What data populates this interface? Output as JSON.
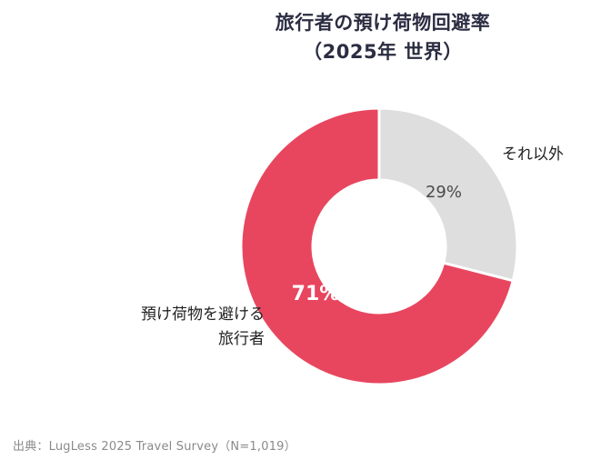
{
  "title": {
    "line1": "旅行者の預け荷物回避率",
    "line2": "（2025年 世界）"
  },
  "source": "出典：LugLess 2025 Travel Survey（N=1,019）",
  "colors": {
    "accent": "#e8465f",
    "muted_slice": "#dedede",
    "title_text": "#2b2d42",
    "label_text": "#222222",
    "inside_gray_label": "#4a4a4a",
    "inside_pink_label": "#ffffff",
    "source_text": "#8a8a8a",
    "background": "#ffffff"
  },
  "chart_data": {
    "type": "pie",
    "donut": true,
    "title": "旅行者の預け荷物回避率（2025年 世界）",
    "start_angle_deg": 0,
    "direction": "clockwise",
    "legend": "none",
    "slices": [
      {
        "label": "それ以外",
        "value": 29,
        "display": "29%",
        "color": "#dedede",
        "label_lines": [
          "それ以外"
        ]
      },
      {
        "label": "預け荷物を避ける旅行者",
        "value": 71,
        "display": "71%",
        "color": "#e8465f",
        "label_lines": [
          "預け荷物を避ける",
          "旅行者"
        ]
      }
    ]
  }
}
